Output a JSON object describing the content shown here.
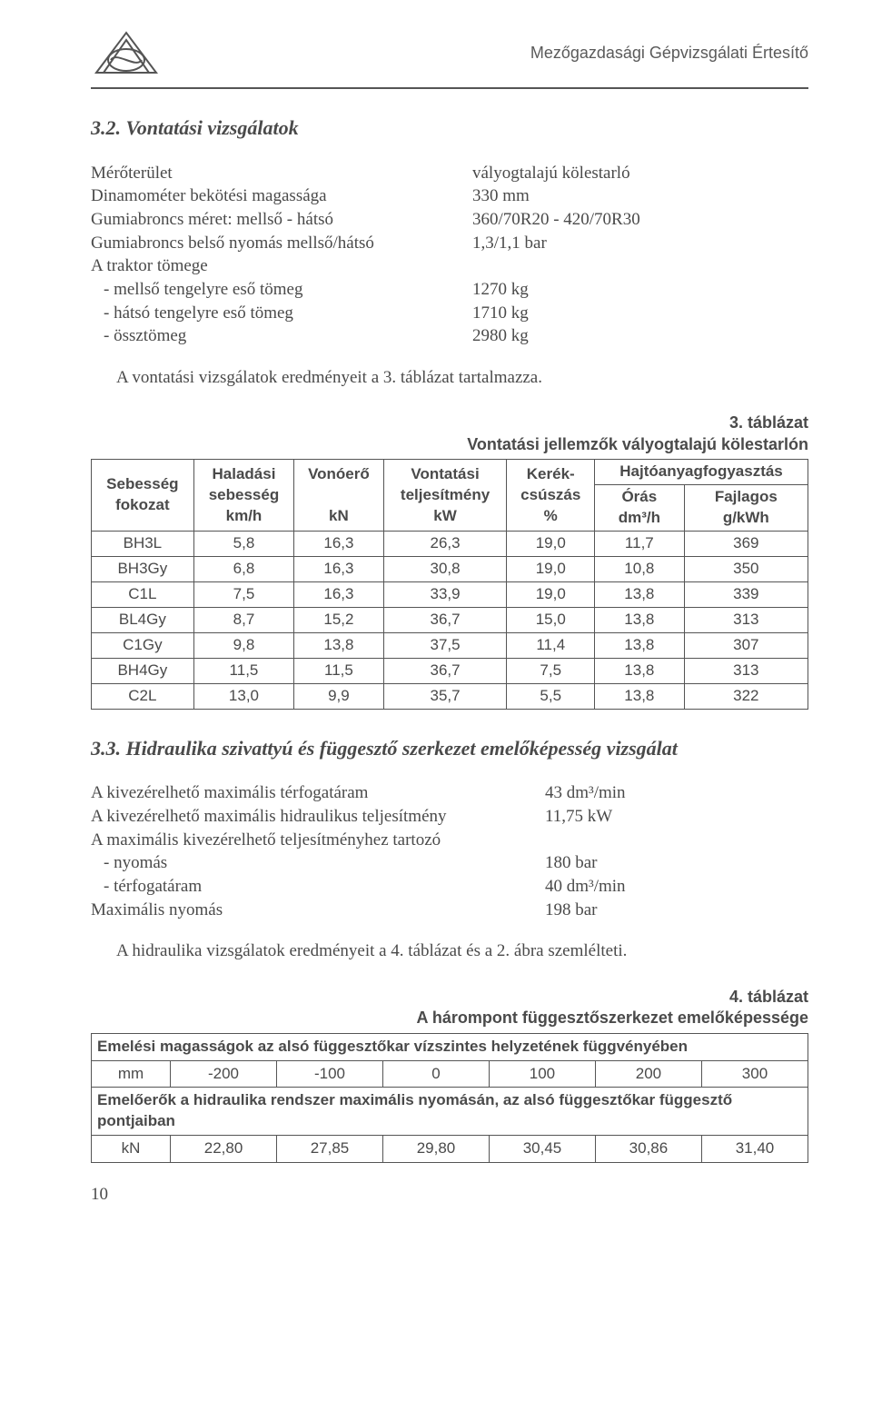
{
  "header": {
    "right_text": "Mezőgazdasági Gépvizsgálati Értesítő"
  },
  "section_32": {
    "title": "3.2. Vontatási vizsgálatok",
    "rows": [
      {
        "label": "Mérőterület",
        "val": "vályogtalajú kölestarló"
      },
      {
        "label": "Dinamométer bekötési magassága",
        "val": "330 mm"
      },
      {
        "label": "Gumiabroncs méret: mellső - hátsó",
        "val": "360/70R20 - 420/70R30"
      },
      {
        "label": "Gumiabroncs belső nyomás mellső/hátsó",
        "val": "1,3/1,1 bar"
      },
      {
        "label": "A traktor tömege",
        "val": ""
      },
      {
        "label": "- mellső tengelyre eső tömeg",
        "val": "1270 kg",
        "indent": true
      },
      {
        "label": "- hátsó tengelyre eső tömeg",
        "val": "1710 kg",
        "indent": true
      },
      {
        "label": "- össztömeg",
        "val": "2980 kg",
        "indent": true
      }
    ],
    "para": "A vontatási vizsgálatok eredményeit a 3. táblázat tartalmazza."
  },
  "table3": {
    "caption_1": "3. táblázat",
    "caption_2": "Vontatási jellemzők vályogtalajú kölestarlón",
    "head": {
      "c1a": "Sebesség",
      "c1b": "fokozat",
      "c2a": "Haladási",
      "c2b": "sebesség",
      "c2c": "km/h",
      "c3a": "Vonóerő",
      "c3c": "kN",
      "c4a": "Vontatási",
      "c4b": "teljesítmény",
      "c4c": "kW",
      "c5a": "Kerék-",
      "c5b": "csúszás",
      "c5c": "%",
      "c6": "Hajtóanyagfogyasztás",
      "c6a": "Órás",
      "c6ac": "dm³/h",
      "c6b": "Fajlagos",
      "c6bc": "g/kWh"
    },
    "rows": [
      [
        "BH3L",
        "5,8",
        "16,3",
        "26,3",
        "19,0",
        "11,7",
        "369"
      ],
      [
        "BH3Gy",
        "6,8",
        "16,3",
        "30,8",
        "19,0",
        "10,8",
        "350"
      ],
      [
        "C1L",
        "7,5",
        "16,3",
        "33,9",
        "19,0",
        "13,8",
        "339"
      ],
      [
        "BL4Gy",
        "8,7",
        "15,2",
        "36,7",
        "15,0",
        "13,8",
        "313"
      ],
      [
        "C1Gy",
        "9,8",
        "13,8",
        "37,5",
        "11,4",
        "13,8",
        "307"
      ],
      [
        "BH4Gy",
        "11,5",
        "11,5",
        "36,7",
        "7,5",
        "13,8",
        "313"
      ],
      [
        "C2L",
        "13,0",
        "9,9",
        "35,7",
        "5,5",
        "13,8",
        "322"
      ]
    ]
  },
  "section_33": {
    "title": "3.3. Hidraulika szivattyú és függesztő szerkezet emelőképesség vizsgálat",
    "rows": [
      {
        "label": "A kivezérelhető maximális térfogatáram",
        "val": "43 dm³/min"
      },
      {
        "label": "A kivezérelhető maximális hidraulikus teljesítmény",
        "val": "11,75 kW"
      },
      {
        "label": "A maximális kivezérelhető teljesítményhez tartozó",
        "val": ""
      },
      {
        "label": "- nyomás",
        "val": "180 bar",
        "indent": true
      },
      {
        "label": "- térfogatáram",
        "val": "40 dm³/min",
        "indent": true
      },
      {
        "label": "Maximális nyomás",
        "val": "198 bar"
      }
    ],
    "para": "A hidraulika vizsgálatok eredményeit a 4. táblázat és a 2. ábra szemlélteti."
  },
  "table4": {
    "caption_1": "4. táblázat",
    "caption_2": "A hárompont függesztőszerkezet emelőképessége",
    "row1_label": "Emelési magasságok az alsó függesztőkar vízszintes helyzetének függvényében",
    "row2": [
      "mm",
      "-200",
      "-100",
      "0",
      "100",
      "200",
      "300"
    ],
    "row3_label": "Emelőerők a hidraulika rendszer maximális nyomásán, az alsó függesztőkar függesztő pontjaiban",
    "row4": [
      "kN",
      "22,80",
      "27,85",
      "29,80",
      "30,45",
      "30,86",
      "31,40"
    ]
  },
  "page_number": "10"
}
